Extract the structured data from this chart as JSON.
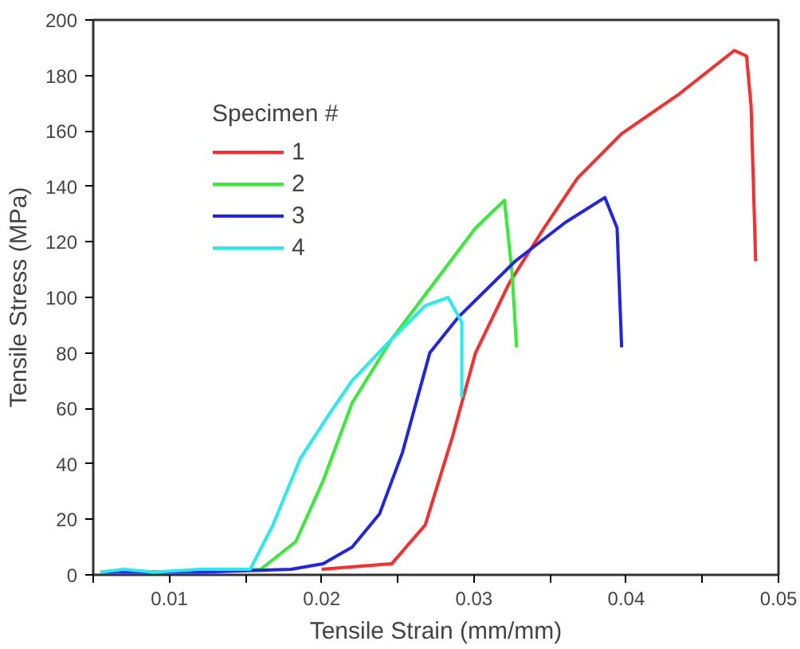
{
  "chart_data": {
    "type": "line",
    "xlabel": "Tensile Strain (mm/mm)",
    "ylabel": "Tensile Stress (MPa)",
    "legend_title": "Specimen #",
    "xlim": [
      0.005,
      0.05
    ],
    "xticks": [
      {
        "value": 0.005,
        "label": null
      },
      0.01,
      {
        "value": 0.015,
        "label": null
      },
      0.02,
      {
        "value": 0.025,
        "label": null
      },
      0.03,
      {
        "value": 0.035,
        "label": null
      },
      0.04,
      {
        "value": 0.045,
        "label": null
      },
      0.05
    ],
    "ylim": [
      0,
      200
    ],
    "yticks": [
      0,
      20,
      40,
      60,
      80,
      100,
      120,
      140,
      160,
      180,
      200
    ],
    "grid": false,
    "legend": "top left",
    "line_style": "solid",
    "marker": "none",
    "series": [
      {
        "name": "1",
        "color": "#ff2a2a",
        "x": [
          0.02,
          0.0246,
          0.0268,
          0.0286,
          0.0301,
          0.0323,
          0.0346,
          0.0368,
          0.0397,
          0.0434,
          0.0471,
          0.0479,
          0.0482,
          0.0485
        ],
        "values": [
          2,
          4,
          18,
          50,
          80,
          105,
          125,
          143,
          159,
          173,
          189,
          187,
          169,
          113
        ]
      },
      {
        "name": "2",
        "color": "#33ee33",
        "x": [
          0.0055,
          0.012,
          0.016,
          0.0183,
          0.0201,
          0.022,
          0.0246,
          0.0268,
          0.0301,
          0.032,
          0.0325,
          0.0328
        ],
        "values": [
          1,
          1,
          2,
          12,
          34,
          62,
          85,
          101,
          125,
          135,
          109,
          82
        ]
      },
      {
        "name": "3",
        "color": "#2222ee",
        "x": [
          0.0055,
          0.012,
          0.018,
          0.0201,
          0.022,
          0.0238,
          0.0253,
          0.0271,
          0.029,
          0.0327,
          0.036,
          0.0386,
          0.0394,
          0.0397
        ],
        "values": [
          1,
          1,
          2,
          4,
          10,
          22,
          44,
          80,
          93,
          113,
          127,
          136,
          125,
          82
        ]
      },
      {
        "name": "4",
        "color": "#22eeee",
        "x": [
          0.0055,
          0.007,
          0.009,
          0.012,
          0.0153,
          0.0168,
          0.0186,
          0.0205,
          0.022,
          0.0246,
          0.0268,
          0.0283,
          0.0292,
          0.0292
        ],
        "values": [
          1,
          2,
          1,
          2,
          2,
          18,
          42,
          58,
          70,
          85,
          97,
          100,
          91,
          64
        ]
      }
    ]
  }
}
